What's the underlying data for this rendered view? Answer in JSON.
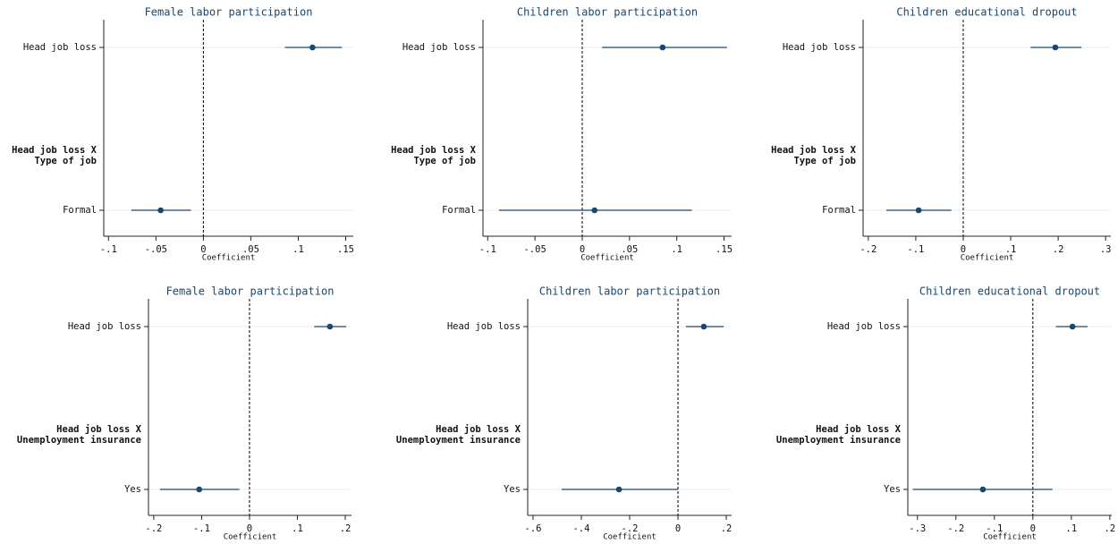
{
  "chart_data": [
    {
      "type": "coefplot",
      "title": "Female labor participation",
      "xlabel": "Coefficient",
      "categories": [
        "Head job loss",
        null,
        "Formal"
      ],
      "group_label": [
        "Head job loss X",
        "Type of job"
      ],
      "values": [
        0.115,
        null,
        -0.045
      ],
      "ci_low": [
        0.086,
        null,
        -0.076
      ],
      "ci_high": [
        0.146,
        null,
        -0.013
      ],
      "xlim": [
        -0.105,
        0.158
      ],
      "xticks": [
        {
          "value": -0.1,
          "label": "-.1"
        },
        {
          "value": -0.05,
          "label": "-.05"
        },
        0,
        {
          "value": 0.05,
          "label": ".05"
        },
        {
          "value": 0.1,
          "label": ".1"
        },
        {
          "value": 0.15,
          "label": ".15"
        }
      ],
      "color": "#1a476f"
    },
    {
      "type": "coefplot",
      "title": "Children labor participation",
      "xlabel": "Coefficient",
      "categories": [
        "Head job loss",
        null,
        "Formal"
      ],
      "group_label": [
        "Head job loss X",
        "Type of job"
      ],
      "values": [
        0.085,
        null,
        0.013
      ],
      "ci_low": [
        0.021,
        null,
        -0.088
      ],
      "ci_high": [
        0.153,
        null,
        0.116
      ],
      "xlim": [
        -0.105,
        0.158
      ],
      "xticks": [
        {
          "value": -0.1,
          "label": "-.1"
        },
        {
          "value": -0.05,
          "label": "-.05"
        },
        0,
        {
          "value": 0.05,
          "label": ".05"
        },
        {
          "value": 0.1,
          "label": ".1"
        },
        {
          "value": 0.15,
          "label": ".15"
        }
      ],
      "color": "#1a476f"
    },
    {
      "type": "coefplot",
      "title": "Children educational dropout",
      "xlabel": "Coefficient",
      "categories": [
        "Head job loss",
        null,
        "Formal"
      ],
      "group_label": [
        "Head job loss X",
        "Type of job"
      ],
      "values": [
        0.194,
        null,
        -0.094
      ],
      "ci_low": [
        0.142,
        null,
        -0.162
      ],
      "ci_high": [
        0.249,
        null,
        -0.025
      ],
      "xlim": [
        -0.211,
        0.311
      ],
      "xticks": [
        {
          "value": -0.2,
          "label": "-.2"
        },
        {
          "value": -0.1,
          "label": "-.1"
        },
        0,
        {
          "value": 0.1,
          "label": ".1"
        },
        {
          "value": 0.2,
          "label": ".2"
        },
        {
          "value": 0.3,
          "label": ".3"
        }
      ],
      "color": "#1a476f"
    },
    {
      "type": "coefplot",
      "title": "Female labor participation",
      "xlabel": "Coefficient",
      "categories": [
        "Head job loss",
        null,
        "Yes"
      ],
      "group_label": [
        "Head job loss X",
        "Unemployment insurance"
      ],
      "values": [
        0.168,
        null,
        -0.105
      ],
      "ci_low": [
        0.135,
        null,
        -0.187
      ],
      "ci_high": [
        0.202,
        null,
        -0.021
      ],
      "xlim": [
        -0.211,
        0.213
      ],
      "xticks": [
        {
          "value": -0.2,
          "label": "-.2"
        },
        {
          "value": -0.1,
          "label": "-.1"
        },
        0,
        {
          "value": 0.1,
          "label": ".1"
        },
        {
          "value": 0.2,
          "label": ".2"
        }
      ],
      "color": "#1a476f"
    },
    {
      "type": "coefplot",
      "title": "Children labor participation",
      "xlabel": "Coefficient",
      "categories": [
        "Head job loss",
        null,
        "Yes"
      ],
      "group_label": [
        "Head job loss X",
        "Unemployment insurance"
      ],
      "values": [
        0.107,
        null,
        -0.244
      ],
      "ci_low": [
        0.033,
        null,
        -0.481
      ],
      "ci_high": [
        0.189,
        null,
        0.0
      ],
      "xlim": [
        -0.622,
        0.222
      ],
      "xticks": [
        {
          "value": -0.6,
          "label": "-.6"
        },
        {
          "value": -0.4,
          "label": "-.4"
        },
        {
          "value": -0.2,
          "label": "-.2"
        },
        0,
        {
          "value": 0.2,
          "label": ".2"
        }
      ],
      "color": "#1a476f"
    },
    {
      "type": "coefplot",
      "title": "Children educational dropout",
      "xlabel": "Coefficient",
      "categories": [
        "Head job loss",
        null,
        "Yes"
      ],
      "group_label": [
        "Head job loss X",
        "Unemployment insurance"
      ],
      "values": [
        0.103,
        null,
        -0.13
      ],
      "ci_low": [
        0.06,
        null,
        -0.312
      ],
      "ci_high": [
        0.142,
        null,
        0.051
      ],
      "xlim": [
        -0.325,
        0.205
      ],
      "xticks": [
        {
          "value": -0.3,
          "label": "-.3"
        },
        {
          "value": -0.2,
          "label": "-.2"
        },
        {
          "value": -0.1,
          "label": "-.1"
        },
        0,
        {
          "value": 0.1,
          "label": ".1"
        },
        {
          "value": 0.2,
          "label": ".2"
        }
      ],
      "color": "#1a476f"
    }
  ]
}
